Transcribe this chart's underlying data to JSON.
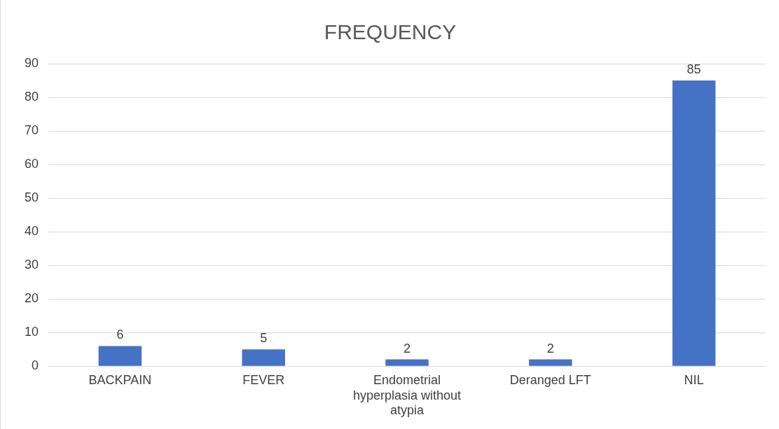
{
  "chart_data": {
    "type": "bar",
    "title": "FREQUENCY",
    "categories": [
      "BACKPAIN",
      "FEVER",
      "Endometrial hyperplasia without atypia",
      "Deranged LFT",
      "NIL"
    ],
    "values": [
      6,
      5,
      2,
      2,
      85
    ],
    "color": "#4472c4",
    "ylim": [
      0,
      90
    ],
    "yticks": [
      0,
      10,
      20,
      30,
      40,
      50,
      60,
      70,
      80,
      90
    ],
    "grid": "y",
    "data_labels": true,
    "legend": false
  }
}
